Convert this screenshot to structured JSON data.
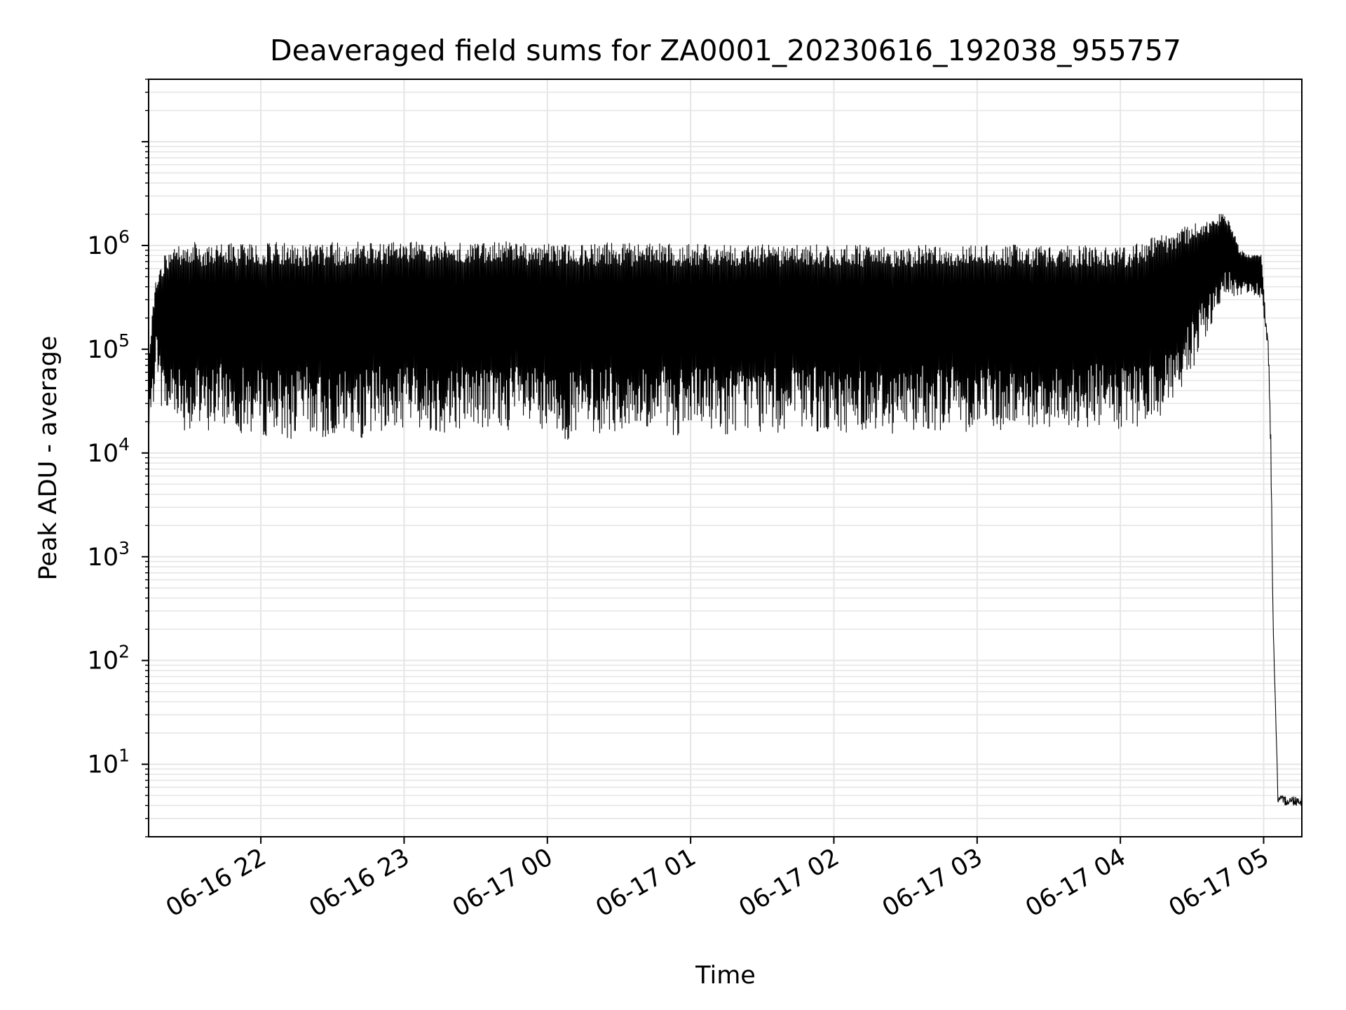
{
  "chart_data": {
    "type": "line",
    "title": "Deaveraged field sums for ZA0001_20230616_192038_955757",
    "xlabel": "Time",
    "ylabel": "Peak ADU - average",
    "yscale": "log",
    "ylim": [
      2,
      40000000
    ],
    "xlim": [
      "2023-06-16 21:13",
      "2023-06-17 05:16"
    ],
    "grid": true,
    "line_color": "#000000",
    "grid_color": "#e6e6e6",
    "x_ticks": [
      {
        "value": "2023-06-16 22:00",
        "label": "06-16 22"
      },
      {
        "value": "2023-06-16 23:00",
        "label": "06-16 23"
      },
      {
        "value": "2023-06-17 00:00",
        "label": "06-17 00"
      },
      {
        "value": "2023-06-17 01:00",
        "label": "06-17 01"
      },
      {
        "value": "2023-06-17 02:00",
        "label": "06-17 02"
      },
      {
        "value": "2023-06-17 03:00",
        "label": "06-17 03"
      },
      {
        "value": "2023-06-17 04:00",
        "label": "06-17 04"
      },
      {
        "value": "2023-06-17 05:00",
        "label": "06-17 05"
      }
    ],
    "y_ticks": [
      {
        "value": 10,
        "base": "10",
        "exp": "1"
      },
      {
        "value": 100,
        "base": "10",
        "exp": "2"
      },
      {
        "value": 1000,
        "base": "10",
        "exp": "3"
      },
      {
        "value": 10000,
        "base": "10",
        "exp": "4"
      },
      {
        "value": 100000,
        "base": "10",
        "exp": "5"
      },
      {
        "value": 1000000,
        "base": "10",
        "exp": "6"
      }
    ],
    "series": [
      {
        "x": [
          "2023-06-16 21:13",
          "2023-06-16 21:15",
          "2023-06-16 21:16",
          "2023-06-16 21:18",
          "2023-06-16 21:20",
          "2023-06-16 21:22",
          "2023-06-16 21:23",
          "2023-06-16 21:25",
          "2023-06-16 21:27",
          "2023-06-16 21:30",
          "2023-06-16 21:33",
          "2023-06-16 21:36",
          "2023-06-16 21:40",
          "2023-06-16 21:45",
          "2023-06-16 21:50",
          "2023-06-16 21:55",
          "2023-06-16 22:00",
          "2023-06-16 22:05",
          "2023-06-16 22:10",
          "2023-06-16 22:15",
          "2023-06-16 22:20",
          "2023-06-16 22:25",
          "2023-06-16 22:30",
          "2023-06-16 22:35",
          "2023-06-16 22:40",
          "2023-06-16 22:45",
          "2023-06-16 22:50",
          "2023-06-16 22:55",
          "2023-06-16 23:00",
          "2023-06-16 23:05",
          "2023-06-16 23:10",
          "2023-06-16 23:15",
          "2023-06-16 23:20",
          "2023-06-16 23:25",
          "2023-06-16 23:30",
          "2023-06-16 23:35",
          "2023-06-16 23:40",
          "2023-06-16 23:45",
          "2023-06-16 23:50",
          "2023-06-16 23:55",
          "2023-06-17 00:00",
          "2023-06-17 00:05",
          "2023-06-17 00:10",
          "2023-06-17 00:15",
          "2023-06-17 00:20",
          "2023-06-17 00:25",
          "2023-06-17 00:30",
          "2023-06-17 00:35",
          "2023-06-17 00:40",
          "2023-06-17 00:45",
          "2023-06-17 00:50",
          "2023-06-17 00:55",
          "2023-06-17 01:00",
          "2023-06-17 01:05",
          "2023-06-17 01:10",
          "2023-06-17 01:15",
          "2023-06-17 01:20",
          "2023-06-17 01:25",
          "2023-06-17 01:30",
          "2023-06-17 01:35",
          "2023-06-17 01:40",
          "2023-06-17 01:45",
          "2023-06-17 01:50",
          "2023-06-17 01:55",
          "2023-06-17 02:00",
          "2023-06-17 02:05",
          "2023-06-17 02:10",
          "2023-06-17 02:15",
          "2023-06-17 02:20",
          "2023-06-17 02:25",
          "2023-06-17 02:30",
          "2023-06-17 02:35",
          "2023-06-17 02:40",
          "2023-06-17 02:45",
          "2023-06-17 02:50",
          "2023-06-17 02:55",
          "2023-06-17 03:00",
          "2023-06-17 03:05",
          "2023-06-17 03:10",
          "2023-06-17 03:15",
          "2023-06-17 03:20",
          "2023-06-17 03:25",
          "2023-06-17 03:30",
          "2023-06-17 03:35",
          "2023-06-17 03:40",
          "2023-06-17 03:45",
          "2023-06-17 03:50",
          "2023-06-17 03:55",
          "2023-06-17 04:00",
          "2023-06-17 04:05",
          "2023-06-17 04:10",
          "2023-06-17 04:15",
          "2023-06-17 04:20",
          "2023-06-17 04:25",
          "2023-06-17 04:30",
          "2023-06-17 04:35",
          "2023-06-17 04:40",
          "2023-06-17 04:42",
          "2023-06-17 04:45",
          "2023-06-17 04:47",
          "2023-06-17 04:50",
          "2023-06-17 04:53",
          "2023-06-17 04:56",
          "2023-06-17 04:59",
          "2023-06-17 05:01",
          "2023-06-17 05:02",
          "2023-06-17 05:03",
          "2023-06-17 05:04",
          "2023-06-17 05:05",
          "2023-06-17 05:06",
          "2023-06-17 05:07",
          "2023-06-17 05:08",
          "2023-06-17 05:10",
          "2023-06-17 05:13",
          "2023-06-17 05:16"
        ],
        "lower": [
          15000,
          25000,
          100000,
          30000,
          20000,
          18000,
          25000,
          22000,
          17000,
          16000,
          15000,
          14000,
          17000,
          18000,
          16000,
          15000,
          14000,
          15000,
          13000,
          14000,
          16000,
          12000,
          15000,
          14000,
          13000,
          15000,
          16000,
          14000,
          18000,
          17000,
          16000,
          15000,
          16000,
          18000,
          17000,
          16000,
          15000,
          17000,
          16000,
          15000,
          12000,
          14000,
          13000,
          14000,
          15000,
          16000,
          15000,
          14000,
          16000,
          15000,
          16000,
          14000,
          15000,
          16000,
          17000,
          15000,
          16000,
          17000,
          15000,
          16000,
          15000,
          16000,
          17000,
          15000,
          14000,
          15000,
          16000,
          17000,
          16000,
          15000,
          16000,
          17000,
          17000,
          16000,
          17000,
          16000,
          17000,
          18000,
          16000,
          17000,
          17000,
          16000,
          17000,
          18000,
          16000,
          17000,
          18000,
          17000,
          15000,
          16000,
          17000,
          20000,
          25000,
          35000,
          60000,
          120000,
          200000,
          250000,
          300000,
          320000,
          300000,
          350000,
          330000,
          300000,
          150000,
          80000,
          8000,
          200,
          30,
          4,
          4,
          4,
          4,
          4,
          4
        ],
        "upper": [
          80000,
          300000,
          450000,
          600000,
          850000,
          900000,
          1000000,
          1050000,
          1000000,
          1050000,
          1080000,
          1000000,
          1050000,
          1060000,
          1040000,
          1070000,
          1050000,
          1080000,
          1060000,
          1050000,
          1040000,
          1060000,
          1070000,
          1050000,
          1080000,
          1060000,
          1050000,
          1070000,
          1100000,
          1080000,
          1060000,
          1070000,
          1100000,
          1090000,
          1080000,
          1060000,
          1100000,
          1080000,
          1070000,
          1060000,
          1050000,
          1040000,
          1060000,
          1050000,
          1040000,
          1060000,
          1070000,
          1050000,
          1040000,
          1030000,
          1050000,
          1040000,
          1020000,
          1030000,
          1040000,
          1020000,
          1030000,
          1040000,
          1030000,
          1020000,
          1010000,
          1020000,
          1030000,
          1010000,
          1000000,
          1010000,
          1020000,
          1000000,
          1010000,
          1020000,
          1000000,
          1010000,
          1020000,
          1010000,
          1000000,
          1020000,
          1030000,
          1010000,
          1000000,
          1020000,
          1010000,
          1000000,
          1010000,
          1020000,
          1000000,
          990000,
          1000000,
          1010000,
          1000000,
          1020000,
          1100000,
          1250000,
          1350000,
          1450000,
          1600000,
          1700000,
          1800000,
          2100000,
          1900000,
          1500000,
          900000,
          850000,
          800000,
          900000,
          180000,
          120000,
          15000,
          220,
          40,
          5,
          5,
          5,
          5,
          5,
          5
        ]
      }
    ]
  }
}
